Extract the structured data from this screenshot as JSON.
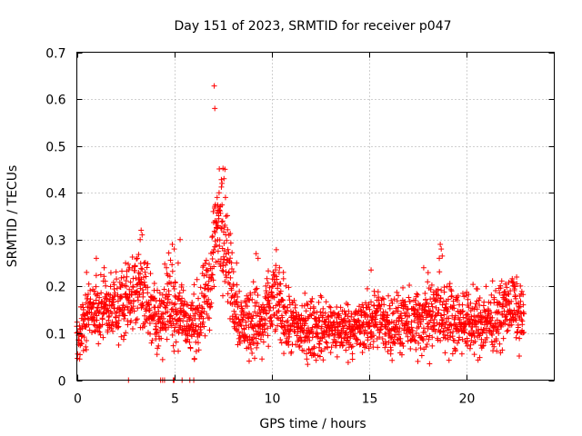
{
  "chart_data": {
    "type": "scatter",
    "title": "Day 151 of 2023, SRMTID for receiver p047",
    "xlabel": "GPS time / hours",
    "ylabel": "SRMTID / TECUs",
    "xlim": [
      0,
      24.5
    ],
    "ylim": [
      0,
      0.7
    ],
    "x_ticks": [
      0,
      5,
      10,
      15,
      20
    ],
    "y_ticks": [
      0,
      0.1,
      0.2,
      0.3,
      0.4,
      0.5,
      0.6,
      0.7
    ],
    "x_tick_labels": [
      "0",
      "5",
      "10",
      "15",
      "20"
    ],
    "y_tick_labels": [
      "0",
      "0.1",
      "0.2",
      "0.3",
      "0.4",
      "0.5",
      "0.6",
      "0.7"
    ],
    "grid": true,
    "marker": "+",
    "color": "#ff0000",
    "sample_step_hours": 0.02,
    "x_range": [
      0,
      22.95
    ],
    "envelope": [
      {
        "x": 0.0,
        "y": 0.09,
        "spread": 0.03
      },
      {
        "x": 0.5,
        "y": 0.14,
        "spread": 0.04
      },
      {
        "x": 1.0,
        "y": 0.15,
        "spread": 0.04
      },
      {
        "x": 1.5,
        "y": 0.16,
        "spread": 0.04
      },
      {
        "x": 2.0,
        "y": 0.15,
        "spread": 0.04
      },
      {
        "x": 2.5,
        "y": 0.17,
        "spread": 0.05
      },
      {
        "x": 3.0,
        "y": 0.19,
        "spread": 0.05
      },
      {
        "x": 3.3,
        "y": 0.21,
        "spread": 0.06
      },
      {
        "x": 3.7,
        "y": 0.15,
        "spread": 0.05
      },
      {
        "x": 4.2,
        "y": 0.13,
        "spread": 0.04
      },
      {
        "x": 4.8,
        "y": 0.17,
        "spread": 0.06
      },
      {
        "x": 5.3,
        "y": 0.15,
        "spread": 0.05
      },
      {
        "x": 5.8,
        "y": 0.11,
        "spread": 0.04
      },
      {
        "x": 6.4,
        "y": 0.14,
        "spread": 0.05
      },
      {
        "x": 6.9,
        "y": 0.22,
        "spread": 0.06
      },
      {
        "x": 7.1,
        "y": 0.31,
        "spread": 0.06
      },
      {
        "x": 7.4,
        "y": 0.34,
        "spread": 0.07
      },
      {
        "x": 7.7,
        "y": 0.28,
        "spread": 0.06
      },
      {
        "x": 8.0,
        "y": 0.18,
        "spread": 0.05
      },
      {
        "x": 8.5,
        "y": 0.12,
        "spread": 0.04
      },
      {
        "x": 9.0,
        "y": 0.13,
        "spread": 0.05
      },
      {
        "x": 9.5,
        "y": 0.12,
        "spread": 0.04
      },
      {
        "x": 10.2,
        "y": 0.18,
        "spread": 0.05
      },
      {
        "x": 10.8,
        "y": 0.12,
        "spread": 0.04
      },
      {
        "x": 11.5,
        "y": 0.11,
        "spread": 0.04
      },
      {
        "x": 12.5,
        "y": 0.11,
        "spread": 0.04
      },
      {
        "x": 13.5,
        "y": 0.11,
        "spread": 0.035
      },
      {
        "x": 14.5,
        "y": 0.11,
        "spread": 0.035
      },
      {
        "x": 15.2,
        "y": 0.13,
        "spread": 0.04
      },
      {
        "x": 16.0,
        "y": 0.12,
        "spread": 0.04
      },
      {
        "x": 17.0,
        "y": 0.12,
        "spread": 0.04
      },
      {
        "x": 17.8,
        "y": 0.13,
        "spread": 0.045
      },
      {
        "x": 18.6,
        "y": 0.14,
        "spread": 0.05
      },
      {
        "x": 19.5,
        "y": 0.13,
        "spread": 0.04
      },
      {
        "x": 20.5,
        "y": 0.12,
        "spread": 0.04
      },
      {
        "x": 21.5,
        "y": 0.13,
        "spread": 0.04
      },
      {
        "x": 22.3,
        "y": 0.16,
        "spread": 0.04
      },
      {
        "x": 22.95,
        "y": 0.13,
        "spread": 0.04
      }
    ],
    "highlights": [
      {
        "x": 7.05,
        "y": 0.628
      },
      {
        "x": 7.08,
        "y": 0.58
      },
      {
        "x": 7.5,
        "y": 0.452
      },
      {
        "x": 7.6,
        "y": 0.45
      },
      {
        "x": 7.55,
        "y": 0.43
      },
      {
        "x": 7.45,
        "y": 0.42
      },
      {
        "x": 7.3,
        "y": 0.4
      },
      {
        "x": 7.2,
        "y": 0.39
      },
      {
        "x": 7.35,
        "y": 0.37
      },
      {
        "x": 7.0,
        "y": 0.36
      },
      {
        "x": 7.65,
        "y": 0.35
      },
      {
        "x": 7.1,
        "y": 0.34
      },
      {
        "x": 7.25,
        "y": 0.33
      },
      {
        "x": 3.3,
        "y": 0.32
      },
      {
        "x": 3.35,
        "y": 0.31
      },
      {
        "x": 3.25,
        "y": 0.3
      },
      {
        "x": 3.1,
        "y": 0.26
      },
      {
        "x": 3.45,
        "y": 0.25
      },
      {
        "x": 4.9,
        "y": 0.29
      },
      {
        "x": 5.3,
        "y": 0.3
      },
      {
        "x": 5.0,
        "y": 0.28
      },
      {
        "x": 4.6,
        "y": 0.24
      },
      {
        "x": 5.2,
        "y": 0.25
      },
      {
        "x": 8.2,
        "y": 0.25
      },
      {
        "x": 9.2,
        "y": 0.27
      },
      {
        "x": 9.3,
        "y": 0.26
      },
      {
        "x": 10.4,
        "y": 0.24
      },
      {
        "x": 10.6,
        "y": 0.23
      },
      {
        "x": 15.1,
        "y": 0.235
      },
      {
        "x": 17.8,
        "y": 0.24
      },
      {
        "x": 18.0,
        "y": 0.21
      },
      {
        "x": 18.65,
        "y": 0.29
      },
      {
        "x": 18.7,
        "y": 0.28
      },
      {
        "x": 18.6,
        "y": 0.26
      },
      {
        "x": 18.75,
        "y": 0.265
      },
      {
        "x": 19.0,
        "y": 0.2
      },
      {
        "x": 21.0,
        "y": 0.2
      },
      {
        "x": 22.0,
        "y": 0.205
      },
      {
        "x": 22.5,
        "y": 0.2
      },
      {
        "x": 0.5,
        "y": 0.23
      },
      {
        "x": 1.0,
        "y": 0.26
      },
      {
        "x": 1.4,
        "y": 0.24
      },
      {
        "x": 2.5,
        "y": 0.25
      },
      {
        "x": 2.7,
        "y": 0.24
      },
      {
        "x": 9.5,
        "y": 0.045
      },
      {
        "x": 11.8,
        "y": 0.045
      },
      {
        "x": 17.5,
        "y": 0.04
      },
      {
        "x": 18.1,
        "y": 0.035
      },
      {
        "x": 20.4,
        "y": 0.055
      },
      {
        "x": 2.65,
        "y": 0.0
      },
      {
        "x": 4.3,
        "y": 0.0
      },
      {
        "x": 4.4,
        "y": 0.0
      },
      {
        "x": 4.5,
        "y": 0.0
      },
      {
        "x": 4.95,
        "y": 0.0
      },
      {
        "x": 5.0,
        "y": 0.0
      },
      {
        "x": 5.4,
        "y": 0.0
      },
      {
        "x": 5.8,
        "y": 0.0
      },
      {
        "x": 6.0,
        "y": 0.0
      }
    ]
  }
}
